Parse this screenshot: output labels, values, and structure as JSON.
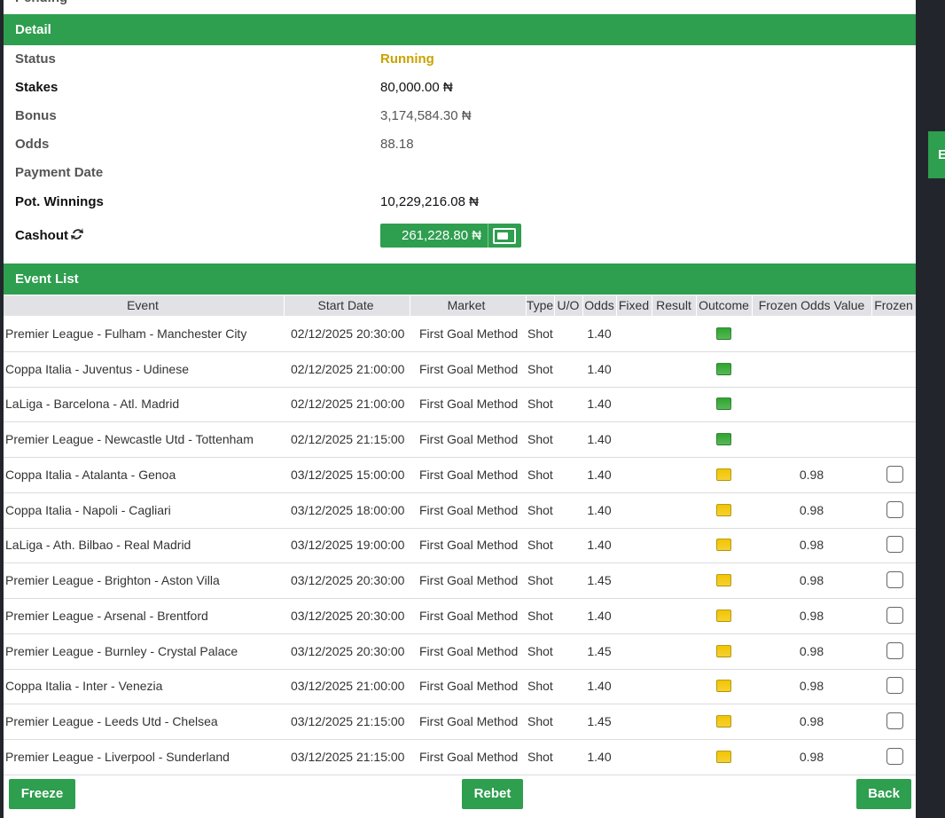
{
  "page": {
    "top_status": "Pending",
    "side_tab": "E"
  },
  "detail": {
    "title": "Detail",
    "rows": [
      {
        "label": "Status",
        "value": "Running"
      },
      {
        "label": "Stakes",
        "value": "80,000.00 ₦"
      },
      {
        "label": "Bonus",
        "value": "3,174,584.30 ₦"
      },
      {
        "label": "Odds",
        "value": "88.18"
      },
      {
        "label": "Payment Date",
        "value": null
      },
      {
        "label": "Pot. Winnings",
        "value": "10,229,216.08 ₦"
      },
      {
        "label": "Cashout",
        "value": "261,228.80 ₦"
      }
    ]
  },
  "events": {
    "title": "Event List",
    "columns": [
      "Event",
      "Start Date",
      "Market",
      "Type",
      "U/O",
      "Odds",
      "Fixed",
      "Result",
      "Outcome",
      "Frozen Odds Value",
      "Frozen"
    ],
    "rows": [
      {
        "event": "Premier League - Fulham - Manchester City",
        "start": "02/12/2025 20:30:00",
        "market": "First Goal Method",
        "type": "Shot",
        "odds": "1.40",
        "outcome_color": "#2ea52e",
        "frozen_value": null
      },
      {
        "event": "Coppa Italia - Juventus - Udinese",
        "start": "02/12/2025 21:00:00",
        "market": "First Goal Method",
        "type": "Shot",
        "odds": "1.40",
        "outcome_color": "#2ea52e",
        "frozen_value": null
      },
      {
        "event": "LaLiga - Barcelona - Atl. Madrid",
        "start": "02/12/2025 21:00:00",
        "market": "First Goal Method",
        "type": "Shot",
        "odds": "1.40",
        "outcome_color": "#2ea52e",
        "frozen_value": null
      },
      {
        "event": "Premier League - Newcastle Utd - Tottenham",
        "start": "02/12/2025 21:15:00",
        "market": "First Goal Method",
        "type": "Shot",
        "odds": "1.40",
        "outcome_color": "#2ea52e",
        "frozen_value": null
      },
      {
        "event": "Coppa Italia - Atalanta - Genoa",
        "start": "03/12/2025 15:00:00",
        "market": "First Goal Method",
        "type": "Shot",
        "odds": "1.40",
        "outcome_color": "#f2c500",
        "frozen_value": "0.98"
      },
      {
        "event": "Coppa Italia - Napoli - Cagliari",
        "start": "03/12/2025 18:00:00",
        "market": "First Goal Method",
        "type": "Shot",
        "odds": "1.40",
        "outcome_color": "#f2c500",
        "frozen_value": "0.98"
      },
      {
        "event": "LaLiga - Ath. Bilbao - Real Madrid",
        "start": "03/12/2025 19:00:00",
        "market": "First Goal Method",
        "type": "Shot",
        "odds": "1.40",
        "outcome_color": "#f2c500",
        "frozen_value": "0.98"
      },
      {
        "event": "Premier League - Brighton - Aston Villa",
        "start": "03/12/2025 20:30:00",
        "market": "First Goal Method",
        "type": "Shot",
        "odds": "1.45",
        "outcome_color": "#f2c500",
        "frozen_value": "0.98"
      },
      {
        "event": "Premier League - Arsenal - Brentford",
        "start": "03/12/2025 20:30:00",
        "market": "First Goal Method",
        "type": "Shot",
        "odds": "1.40",
        "outcome_color": "#f2c500",
        "frozen_value": "0.98"
      },
      {
        "event": "Premier League - Burnley - Crystal Palace",
        "start": "03/12/2025 20:30:00",
        "market": "First Goal Method",
        "type": "Shot",
        "odds": "1.45",
        "outcome_color": "#f2c500",
        "frozen_value": "0.98"
      },
      {
        "event": "Coppa Italia - Inter - Venezia",
        "start": "03/12/2025 21:00:00",
        "market": "First Goal Method",
        "type": "Shot",
        "odds": "1.40",
        "outcome_color": "#f2c500",
        "frozen_value": "0.98"
      },
      {
        "event": "Premier League - Leeds Utd - Chelsea",
        "start": "03/12/2025 21:15:00",
        "market": "First Goal Method",
        "type": "Shot",
        "odds": "1.45",
        "outcome_color": "#f2c500",
        "frozen_value": "0.98"
      },
      {
        "event": "Premier League - Liverpool - Sunderland",
        "start": "03/12/2025 21:15:00",
        "market": "First Goal Method",
        "type": "Shot",
        "odds": "1.40",
        "outcome_color": "#f2c500",
        "frozen_value": "0.98"
      }
    ]
  },
  "buttons": [
    "Freeze",
    "Rebet",
    "Back"
  ]
}
